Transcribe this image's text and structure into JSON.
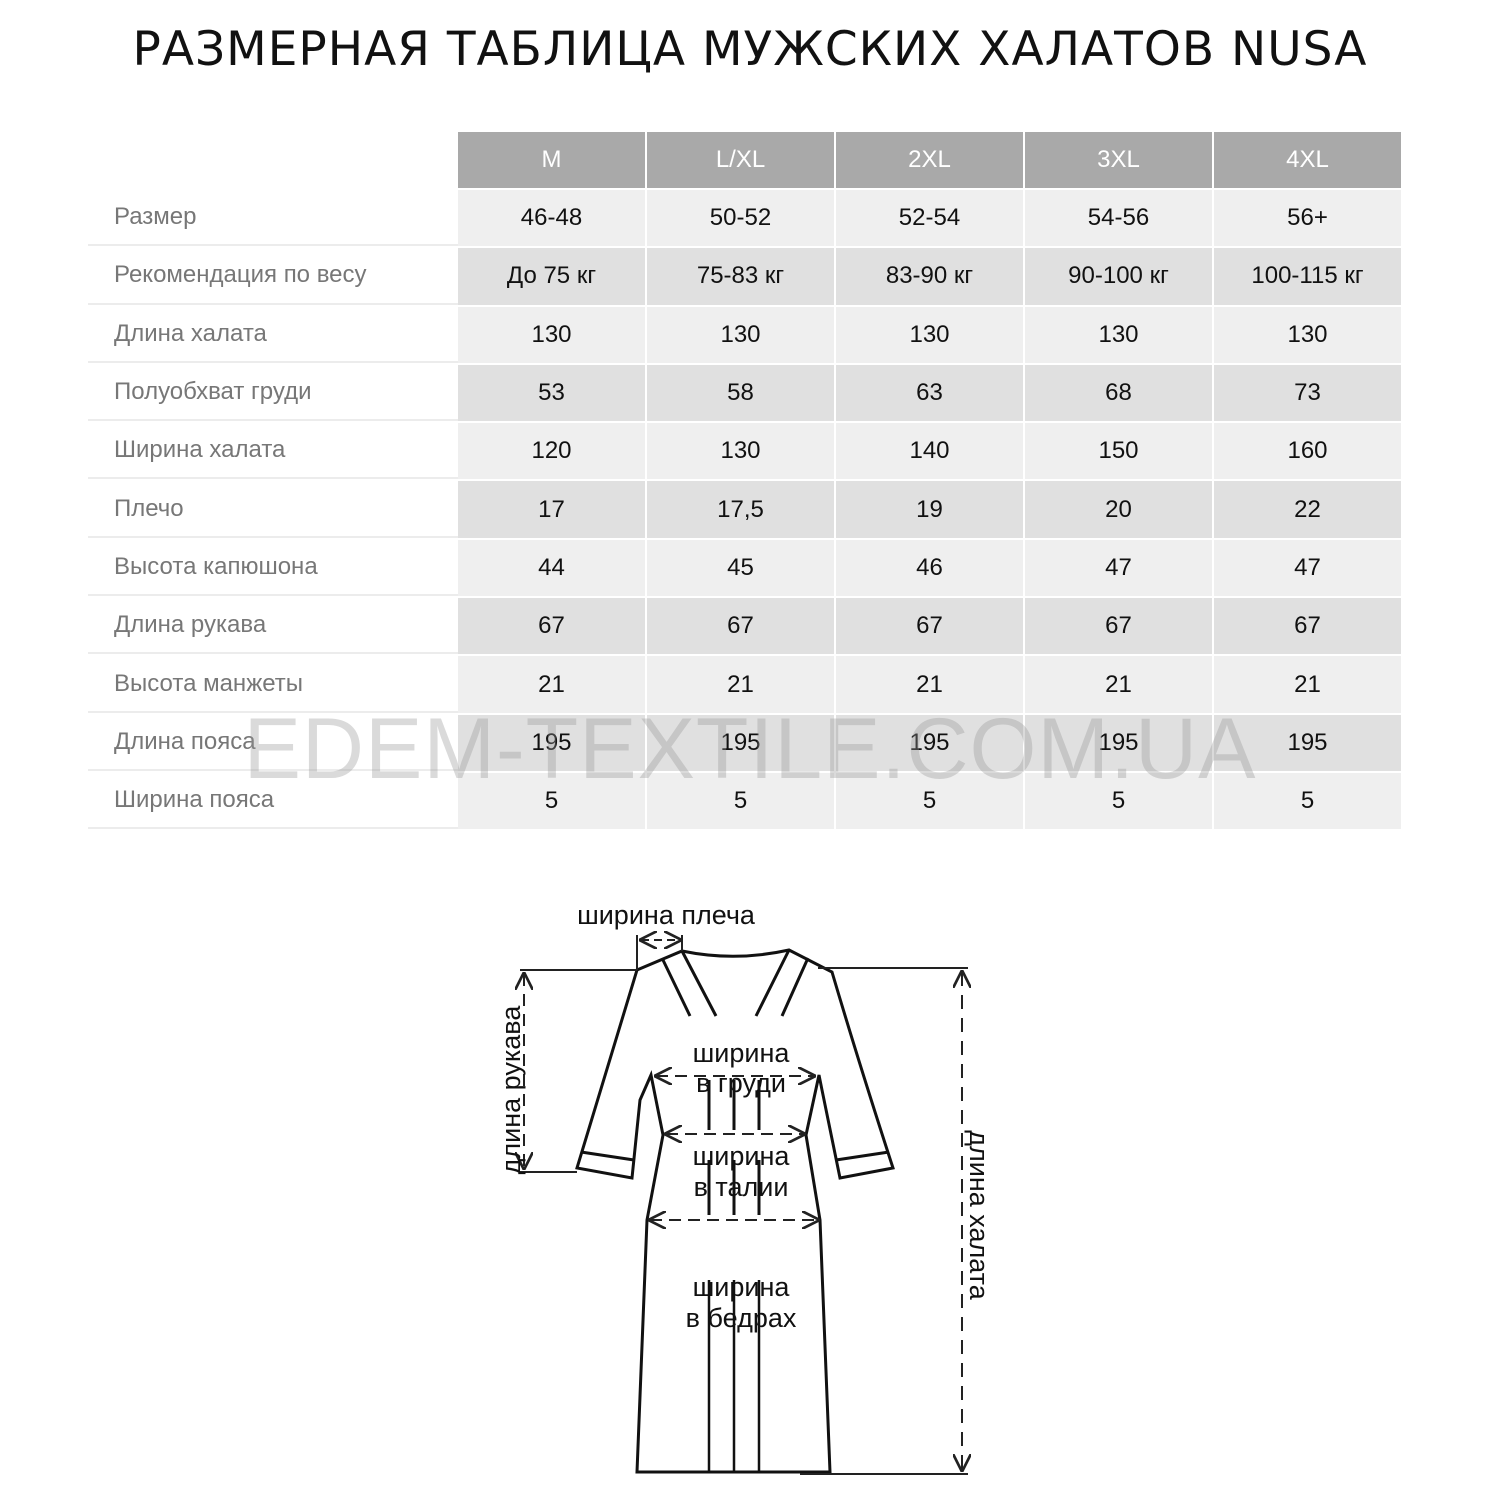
{
  "title": "РАЗМЕРНАЯ ТАБЛИЦА МУЖСКИХ ХАЛАТОВ NUSA",
  "table": {
    "sizes": [
      "M",
      "L/XL",
      "2XL",
      "3XL",
      "4XL"
    ],
    "rows": [
      {
        "label": "Размер",
        "values": [
          "46-48",
          "50-52",
          "52-54",
          "54-56",
          "56+"
        ]
      },
      {
        "label": "Рекомендация по весу",
        "values": [
          "До 75 кг",
          "75-83 кг",
          "83-90 кг",
          "90-100 кг",
          "100-115 кг"
        ]
      },
      {
        "label": "Длина халата",
        "values": [
          "130",
          "130",
          "130",
          "130",
          "130"
        ]
      },
      {
        "label": "Полуобхват груди",
        "values": [
          "53",
          "58",
          "63",
          "68",
          "73"
        ]
      },
      {
        "label": "Ширина халата",
        "values": [
          "120",
          "130",
          "140",
          "150",
          "160"
        ]
      },
      {
        "label": "Плечо",
        "values": [
          "17",
          "17,5",
          "19",
          "20",
          "22"
        ]
      },
      {
        "label": "Высота капюшона",
        "values": [
          "44",
          "45",
          "46",
          "47",
          "47"
        ]
      },
      {
        "label": "Длина рукава",
        "values": [
          "67",
          "67",
          "67",
          "67",
          "67"
        ]
      },
      {
        "label": "Высота манжеты",
        "values": [
          "21",
          "21",
          "21",
          "21",
          "21"
        ]
      },
      {
        "label": "Длина пояса",
        "values": [
          "195",
          "195",
          "195",
          "195",
          "195"
        ]
      },
      {
        "label": "Ширина пояса",
        "values": [
          "5",
          "5",
          "5",
          "5",
          "5"
        ]
      }
    ]
  },
  "watermark": "EDEM-TEXTILE.COM.UA",
  "diagram": {
    "shoulder_width": "ширина плеча",
    "sleeve_length": "длина рукава",
    "robe_length": "длина халата",
    "chest_1": "ширина",
    "chest_2": "в груди",
    "waist_1": "ширина",
    "waist_2": "в талии",
    "hips_1": "ширина",
    "hips_2": "в бедрах"
  },
  "colors": {
    "header_bg": "#a9a9a9",
    "row_light": "#efefef",
    "row_dark": "#e0e0e0",
    "label_text": "#777777"
  }
}
